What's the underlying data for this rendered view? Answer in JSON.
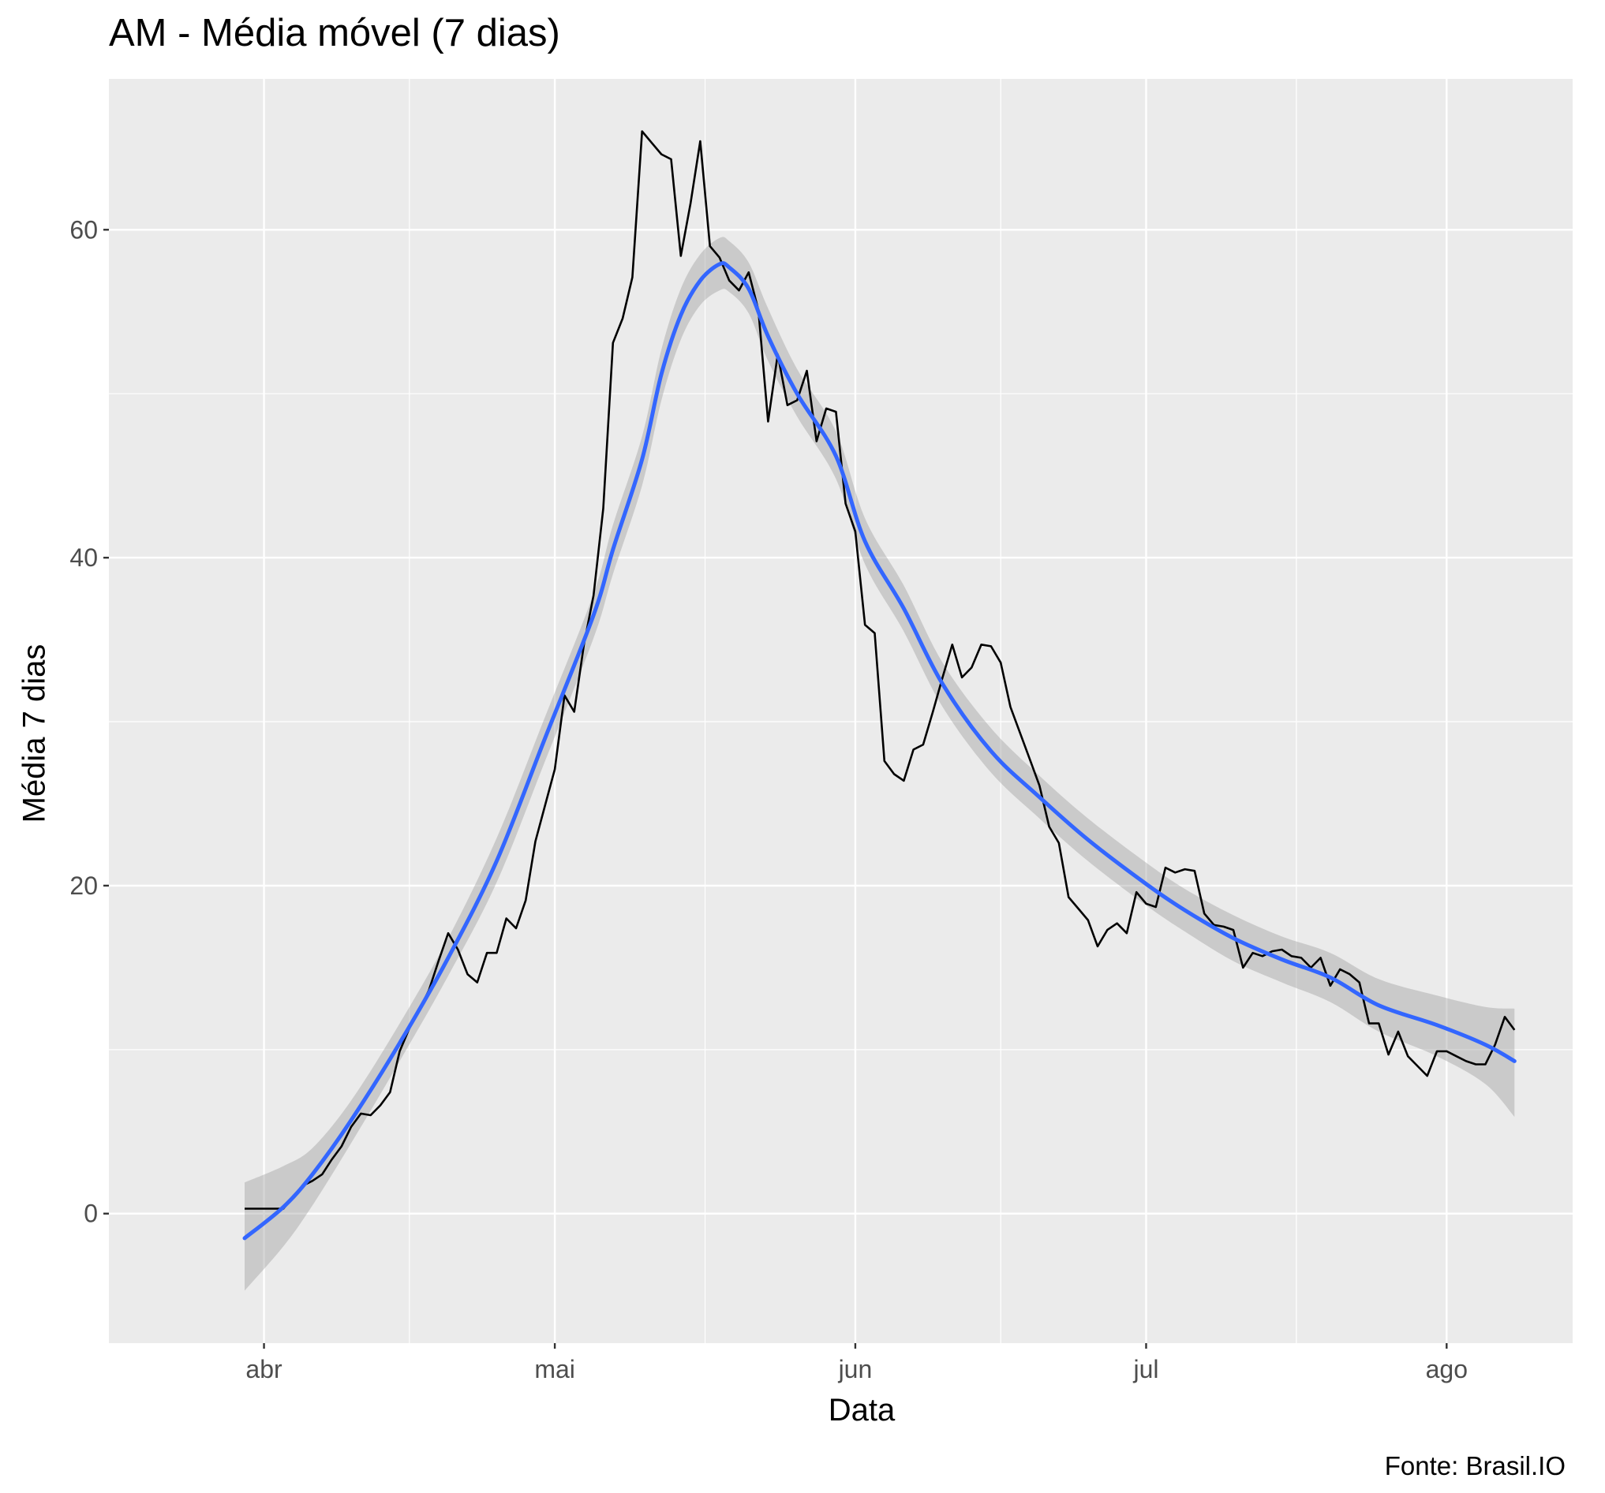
{
  "chart_data": {
    "type": "line",
    "title": "AM - Média móvel (7 dias)",
    "xlabel": "Data",
    "ylabel": "Média 7 dias",
    "caption": "Fonte: Brasil.IO",
    "x_ticks": [
      {
        "label": "abr",
        "date": "2020-04-01"
      },
      {
        "label": "mai",
        "date": "2020-05-01"
      },
      {
        "label": "jun",
        "date": "2020-06-01"
      },
      {
        "label": "jul",
        "date": "2020-07-01"
      },
      {
        "label": "ago",
        "date": "2020-08-01"
      }
    ],
    "x_range": [
      "2020-03-16",
      "2020-08-14"
    ],
    "y_ticks": [
      0,
      20,
      40,
      60
    ],
    "ylim": [
      -7.9,
      69.2
    ],
    "grid": true,
    "background_color": "#EBEBEB",
    "series": [
      {
        "role": "raw",
        "color": "#000000",
        "points": [
          [
            "2020-03-30",
            0.3
          ],
          [
            "2020-03-31",
            0.3
          ],
          [
            "2020-04-01",
            0.3
          ],
          [
            "2020-04-02",
            0.3
          ],
          [
            "2020-04-03",
            0.3
          ],
          [
            "2020-04-04",
            1.0
          ],
          [
            "2020-04-05",
            1.7
          ],
          [
            "2020-04-06",
            2.0
          ],
          [
            "2020-04-07",
            2.4
          ],
          [
            "2020-04-08",
            3.3
          ],
          [
            "2020-04-09",
            4.1
          ],
          [
            "2020-04-10",
            5.3
          ],
          [
            "2020-04-11",
            6.1
          ],
          [
            "2020-04-12",
            6.0
          ],
          [
            "2020-04-13",
            6.6
          ],
          [
            "2020-04-14",
            7.4
          ],
          [
            "2020-04-15",
            9.9
          ],
          [
            "2020-04-16",
            11.3
          ],
          [
            "2020-04-17",
            12.4
          ],
          [
            "2020-04-18",
            13.6
          ],
          [
            "2020-04-19",
            15.4
          ],
          [
            "2020-04-20",
            17.1
          ],
          [
            "2020-04-21",
            16.1
          ],
          [
            "2020-04-22",
            14.6
          ],
          [
            "2020-04-23",
            14.1
          ],
          [
            "2020-04-24",
            15.9
          ],
          [
            "2020-04-25",
            15.9
          ],
          [
            "2020-04-26",
            18.0
          ],
          [
            "2020-04-27",
            17.4
          ],
          [
            "2020-04-28",
            19.1
          ],
          [
            "2020-04-29",
            22.7
          ],
          [
            "2020-04-30",
            24.9
          ],
          [
            "2020-05-01",
            27.1
          ],
          [
            "2020-05-02",
            31.6
          ],
          [
            "2020-05-03",
            30.6
          ],
          [
            "2020-05-04",
            34.7
          ],
          [
            "2020-05-05",
            37.7
          ],
          [
            "2020-05-06",
            43.0
          ],
          [
            "2020-05-07",
            53.1
          ],
          [
            "2020-05-08",
            54.6
          ],
          [
            "2020-05-09",
            57.1
          ],
          [
            "2020-05-10",
            66.0
          ],
          [
            "2020-05-11",
            65.3
          ],
          [
            "2020-05-12",
            64.6
          ],
          [
            "2020-05-13",
            64.3
          ],
          [
            "2020-05-14",
            58.4
          ],
          [
            "2020-05-15",
            61.6
          ],
          [
            "2020-05-16",
            65.4
          ],
          [
            "2020-05-17",
            59.0
          ],
          [
            "2020-05-18",
            58.3
          ],
          [
            "2020-05-19",
            56.9
          ],
          [
            "2020-05-20",
            56.3
          ],
          [
            "2020-05-21",
            57.4
          ],
          [
            "2020-05-22",
            55.1
          ],
          [
            "2020-05-23",
            48.3
          ],
          [
            "2020-05-24",
            52.4
          ],
          [
            "2020-05-25",
            49.3
          ],
          [
            "2020-05-26",
            49.6
          ],
          [
            "2020-05-27",
            51.4
          ],
          [
            "2020-05-28",
            47.1
          ],
          [
            "2020-05-29",
            49.1
          ],
          [
            "2020-05-30",
            48.9
          ],
          [
            "2020-05-31",
            43.3
          ],
          [
            "2020-06-01",
            41.6
          ],
          [
            "2020-06-02",
            35.9
          ],
          [
            "2020-06-03",
            35.4
          ],
          [
            "2020-06-04",
            27.6
          ],
          [
            "2020-06-05",
            26.8
          ],
          [
            "2020-06-06",
            26.4
          ],
          [
            "2020-06-07",
            28.3
          ],
          [
            "2020-06-08",
            28.6
          ],
          [
            "2020-06-09",
            30.6
          ],
          [
            "2020-06-10",
            32.7
          ],
          [
            "2020-06-11",
            34.7
          ],
          [
            "2020-06-12",
            32.7
          ],
          [
            "2020-06-13",
            33.3
          ],
          [
            "2020-06-14",
            34.7
          ],
          [
            "2020-06-15",
            34.6
          ],
          [
            "2020-06-16",
            33.6
          ],
          [
            "2020-06-17",
            30.9
          ],
          [
            "2020-06-18",
            29.3
          ],
          [
            "2020-06-19",
            27.7
          ],
          [
            "2020-06-20",
            26.1
          ],
          [
            "2020-06-21",
            23.6
          ],
          [
            "2020-06-22",
            22.6
          ],
          [
            "2020-06-23",
            19.3
          ],
          [
            "2020-06-24",
            18.6
          ],
          [
            "2020-06-25",
            17.9
          ],
          [
            "2020-06-26",
            16.3
          ],
          [
            "2020-06-27",
            17.3
          ],
          [
            "2020-06-28",
            17.7
          ],
          [
            "2020-06-29",
            17.1
          ],
          [
            "2020-06-30",
            19.6
          ],
          [
            "2020-07-01",
            18.9
          ],
          [
            "2020-07-02",
            18.7
          ],
          [
            "2020-07-03",
            21.1
          ],
          [
            "2020-07-04",
            20.8
          ],
          [
            "2020-07-05",
            21.0
          ],
          [
            "2020-07-06",
            20.9
          ],
          [
            "2020-07-07",
            18.3
          ],
          [
            "2020-07-08",
            17.6
          ],
          [
            "2020-07-09",
            17.5
          ],
          [
            "2020-07-10",
            17.3
          ],
          [
            "2020-07-11",
            15.0
          ],
          [
            "2020-07-12",
            15.9
          ],
          [
            "2020-07-13",
            15.7
          ],
          [
            "2020-07-14",
            16.0
          ],
          [
            "2020-07-15",
            16.1
          ],
          [
            "2020-07-16",
            15.7
          ],
          [
            "2020-07-17",
            15.6
          ],
          [
            "2020-07-18",
            15.0
          ],
          [
            "2020-07-19",
            15.6
          ],
          [
            "2020-07-20",
            13.9
          ],
          [
            "2020-07-21",
            14.9
          ],
          [
            "2020-07-22",
            14.6
          ],
          [
            "2020-07-23",
            14.1
          ],
          [
            "2020-07-24",
            11.6
          ],
          [
            "2020-07-25",
            11.6
          ],
          [
            "2020-07-26",
            9.7
          ],
          [
            "2020-07-27",
            11.1
          ],
          [
            "2020-07-28",
            9.6
          ],
          [
            "2020-07-29",
            9.0
          ],
          [
            "2020-07-30",
            8.4
          ],
          [
            "2020-07-31",
            9.9
          ],
          [
            "2020-08-01",
            9.9
          ],
          [
            "2020-08-02",
            9.6
          ],
          [
            "2020-08-03",
            9.3
          ],
          [
            "2020-08-04",
            9.1
          ],
          [
            "2020-08-05",
            9.1
          ],
          [
            "2020-08-06",
            10.3
          ],
          [
            "2020-08-07",
            12.0
          ],
          [
            "2020-08-08",
            11.2
          ]
        ]
      },
      {
        "role": "smooth",
        "color": "#3366FF",
        "points": [
          [
            "2020-03-30",
            -1.5
          ],
          [
            "2020-04-03",
            0.4
          ],
          [
            "2020-04-06",
            2.4
          ],
          [
            "2020-04-10",
            5.7
          ],
          [
            "2020-04-15",
            10.4
          ],
          [
            "2020-04-20",
            15.6
          ],
          [
            "2020-04-25",
            21.5
          ],
          [
            "2020-04-30",
            29.0
          ],
          [
            "2020-05-05",
            36.5
          ],
          [
            "2020-05-07",
            40.5
          ],
          [
            "2020-05-10",
            46.0
          ],
          [
            "2020-05-12",
            51.2
          ],
          [
            "2020-05-14",
            54.8
          ],
          [
            "2020-05-16",
            56.9
          ],
          [
            "2020-05-18",
            57.9
          ],
          [
            "2020-05-19",
            57.7
          ],
          [
            "2020-05-21",
            56.4
          ],
          [
            "2020-05-23",
            53.5
          ],
          [
            "2020-05-26",
            50.0
          ],
          [
            "2020-05-30",
            46.2
          ],
          [
            "2020-06-02",
            41.0
          ],
          [
            "2020-06-06",
            36.9
          ],
          [
            "2020-06-10",
            32.3
          ],
          [
            "2020-06-15",
            28.2
          ],
          [
            "2020-06-20",
            25.4
          ],
          [
            "2020-06-25",
            22.8
          ],
          [
            "2020-07-01",
            20.1
          ],
          [
            "2020-07-05",
            18.5
          ],
          [
            "2020-07-10",
            16.8
          ],
          [
            "2020-07-15",
            15.5
          ],
          [
            "2020-07-20",
            14.4
          ],
          [
            "2020-07-25",
            12.7
          ],
          [
            "2020-07-31",
            11.5
          ],
          [
            "2020-08-05",
            10.3
          ],
          [
            "2020-08-08",
            9.3
          ]
        ],
        "band": [
          [
            "2020-03-30",
            -4.7,
            1.9
          ],
          [
            "2020-04-03",
            -2.0,
            2.9
          ],
          [
            "2020-04-06",
            0.5,
            4.0
          ],
          [
            "2020-04-10",
            4.3,
            6.9
          ],
          [
            "2020-04-15",
            9.3,
            11.6
          ],
          [
            "2020-04-20",
            14.5,
            16.8
          ],
          [
            "2020-04-25",
            20.2,
            22.9
          ],
          [
            "2020-04-30",
            27.6,
            30.3
          ],
          [
            "2020-05-05",
            35.1,
            37.8
          ],
          [
            "2020-05-07",
            39.0,
            42.0
          ],
          [
            "2020-05-10",
            44.4,
            47.4
          ],
          [
            "2020-05-12",
            49.6,
            52.7
          ],
          [
            "2020-05-14",
            53.3,
            56.4
          ],
          [
            "2020-05-16",
            55.4,
            58.5
          ],
          [
            "2020-05-18",
            56.3,
            59.5
          ],
          [
            "2020-05-19",
            56.2,
            59.3
          ],
          [
            "2020-05-21",
            54.9,
            58.0
          ],
          [
            "2020-05-23",
            52.0,
            55.2
          ],
          [
            "2020-05-26",
            48.6,
            51.5
          ],
          [
            "2020-05-30",
            44.8,
            47.7
          ],
          [
            "2020-06-02",
            39.6,
            42.4
          ],
          [
            "2020-06-06",
            35.5,
            38.3
          ],
          [
            "2020-06-10",
            30.9,
            33.6
          ],
          [
            "2020-06-15",
            26.9,
            29.6
          ],
          [
            "2020-06-20",
            24.1,
            26.7
          ],
          [
            "2020-06-25",
            21.5,
            24.1
          ],
          [
            "2020-07-01",
            18.8,
            21.4
          ],
          [
            "2020-07-05",
            17.2,
            19.8
          ],
          [
            "2020-07-10",
            15.4,
            18.2
          ],
          [
            "2020-07-15",
            14.1,
            16.9
          ],
          [
            "2020-07-20",
            12.9,
            15.9
          ],
          [
            "2020-07-25",
            11.1,
            14.3
          ],
          [
            "2020-07-31",
            9.6,
            13.3
          ],
          [
            "2020-08-05",
            7.9,
            12.6
          ],
          [
            "2020-08-08",
            5.9,
            12.5
          ]
        ]
      }
    ]
  }
}
